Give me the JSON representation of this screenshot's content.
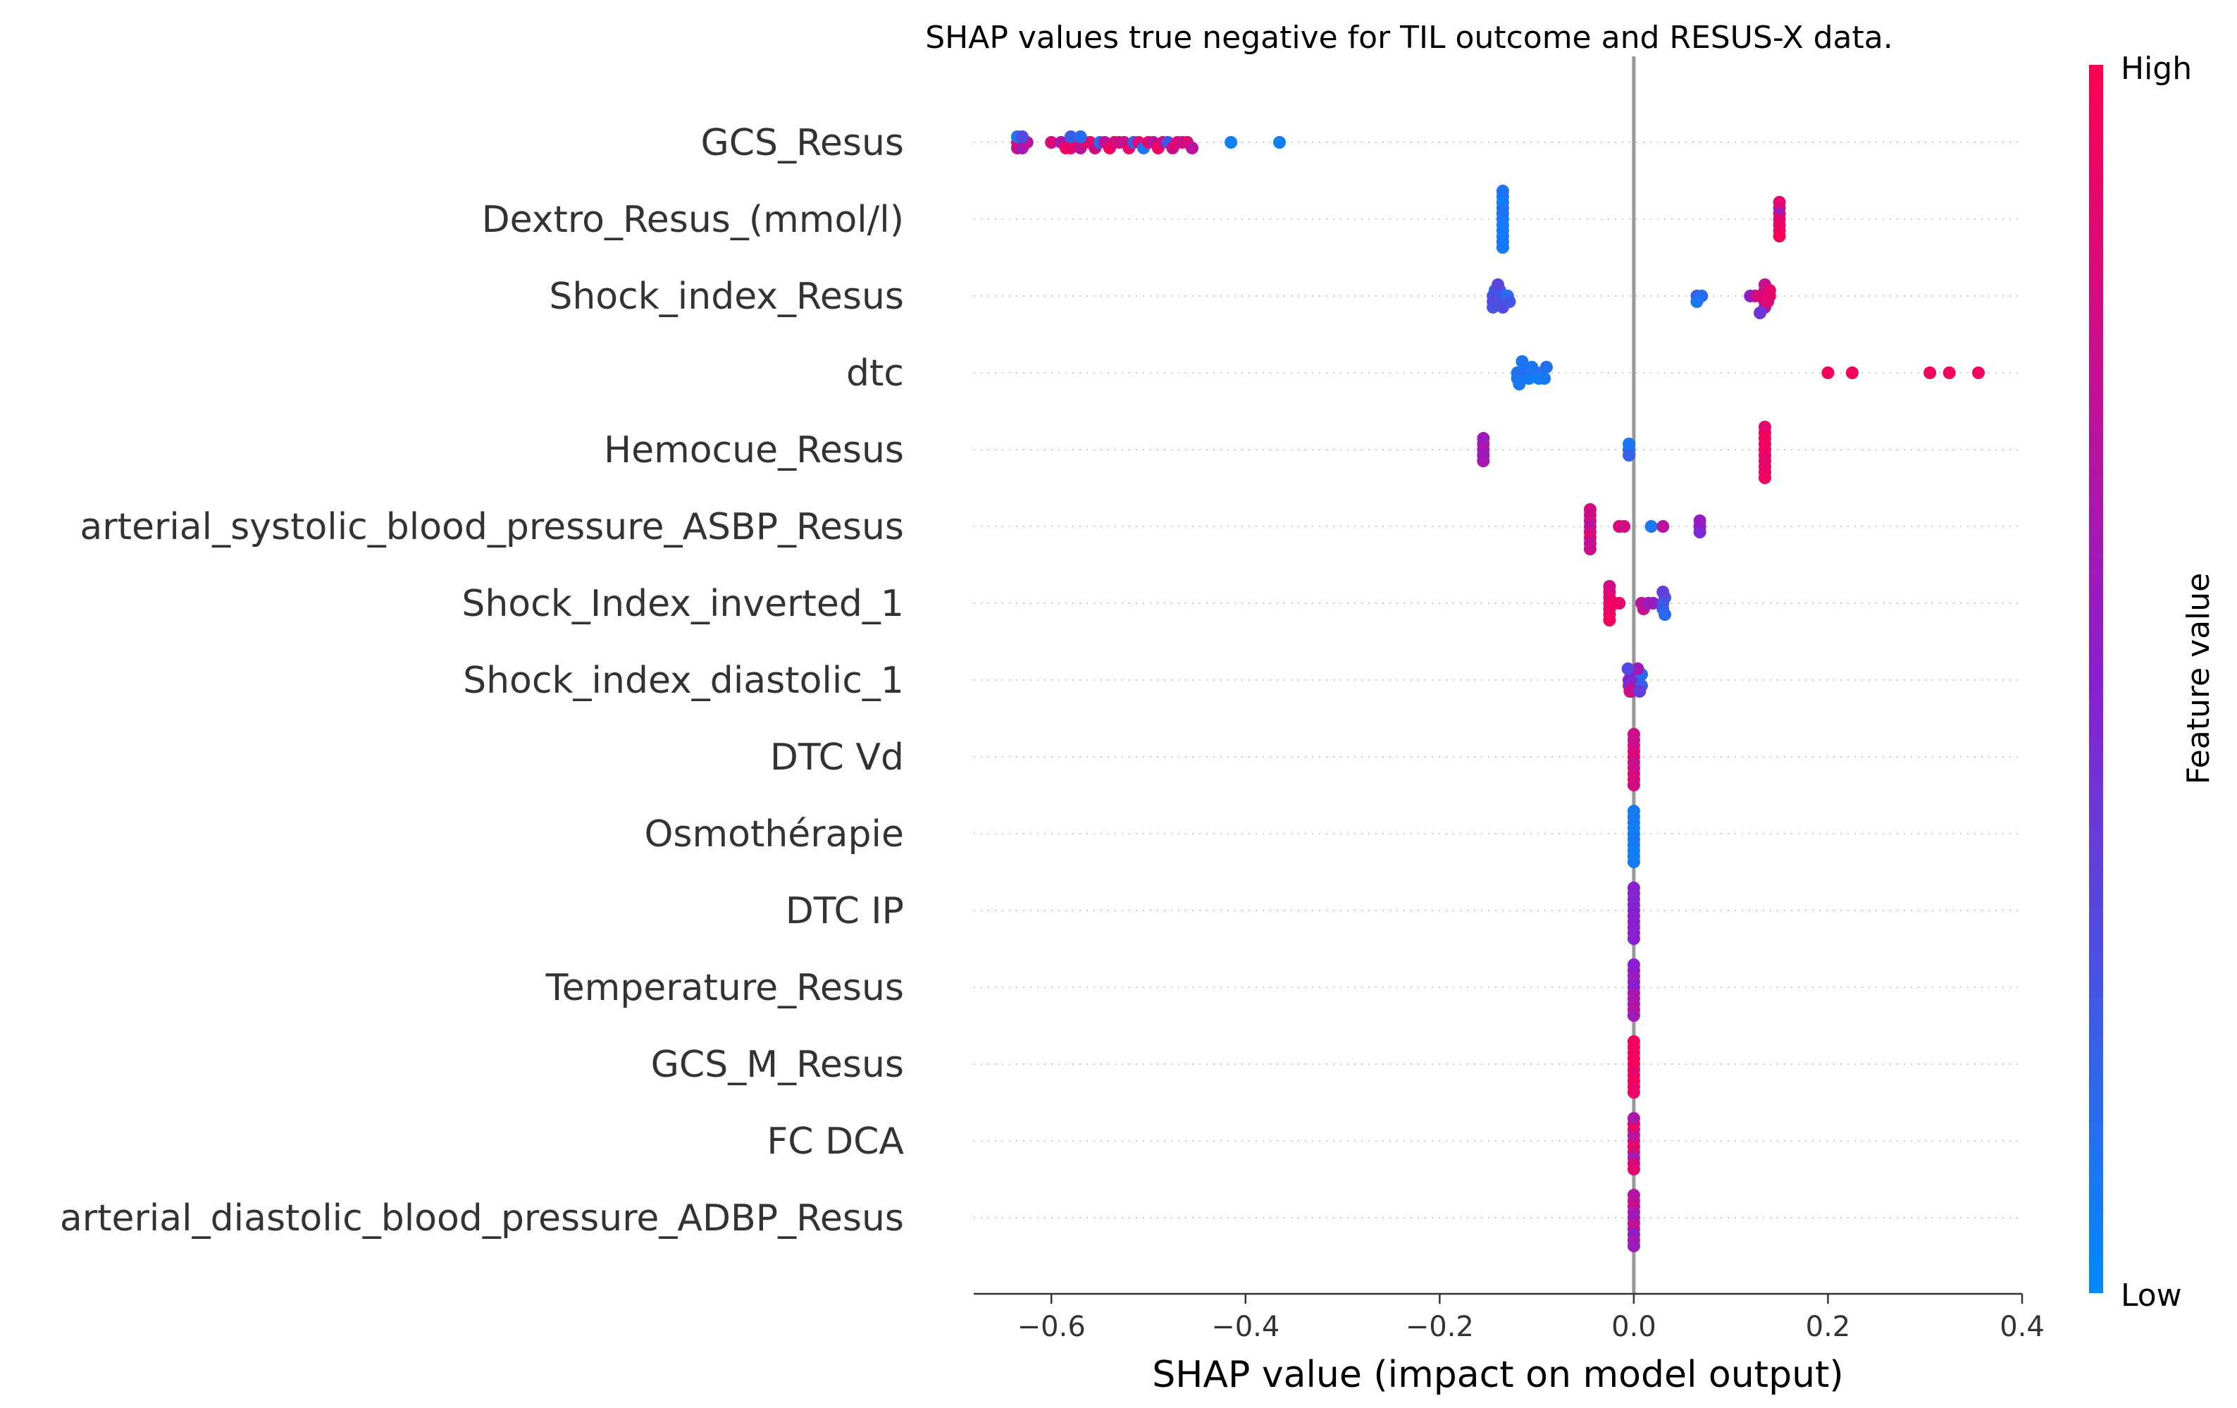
{
  "chart_data": {
    "type": "scatter",
    "subtype": "shap-beeswarm",
    "title": "SHAP values true negative for TIL outcome and RESUS-X data.",
    "xlabel": "SHAP value (impact on model output)",
    "ylabel": "",
    "xlim": [
      -0.68,
      0.4
    ],
    "xticks": [
      -0.6,
      -0.4,
      -0.2,
      0.0,
      0.2,
      0.4
    ],
    "xtick_labels": [
      "−0.6",
      "−0.4",
      "−0.2",
      "0.0",
      "0.2",
      "0.4"
    ],
    "grid": "horizontal dotted guides per feature",
    "colorbar": {
      "label": "Feature value",
      "high_label": "High",
      "low_label": "Low",
      "high_color": "#ff0051",
      "low_color": "#008bfb"
    },
    "features": [
      {
        "name": "GCS_Resus",
        "points": [
          [
            -0.635,
            0.9
          ],
          [
            -0.635,
            0.75
          ],
          [
            -0.632,
            0.95
          ],
          [
            -0.63,
            0.6
          ],
          [
            -0.625,
            0.7
          ],
          [
            -0.6,
            0.85
          ],
          [
            -0.59,
            0.65
          ],
          [
            -0.585,
            0.95
          ],
          [
            -0.58,
            0.8
          ],
          [
            -0.58,
            0.9
          ],
          [
            -0.575,
            0.95
          ],
          [
            -0.57,
            0.7
          ],
          [
            -0.565,
            0.85
          ],
          [
            -0.56,
            0.9
          ],
          [
            -0.555,
            0.8
          ],
          [
            -0.55,
            0.15
          ],
          [
            -0.545,
            0.7
          ],
          [
            -0.54,
            0.95
          ],
          [
            -0.535,
            0.85
          ],
          [
            -0.53,
            0.8
          ],
          [
            -0.525,
            0.75
          ],
          [
            -0.52,
            0.9
          ],
          [
            -0.515,
            0.2
          ],
          [
            -0.51,
            0.85
          ],
          [
            -0.505,
            0.1
          ],
          [
            -0.5,
            0.9
          ],
          [
            -0.495,
            0.7
          ],
          [
            -0.49,
            0.95
          ],
          [
            -0.485,
            0.8
          ],
          [
            -0.48,
            0.25
          ],
          [
            -0.475,
            0.8
          ],
          [
            -0.47,
            0.9
          ],
          [
            -0.465,
            0.75
          ],
          [
            -0.46,
            0.85
          ],
          [
            -0.455,
            0.7
          ],
          [
            -0.415,
            0.05
          ],
          [
            -0.365,
            0.05
          ],
          [
            -0.635,
            0.1
          ],
          [
            -0.63,
            0.3
          ],
          [
            -0.58,
            0.2
          ],
          [
            -0.57,
            0.15
          ]
        ]
      },
      {
        "name": "Dextro_Resus_(mmol/l)",
        "points": [
          [
            -0.135,
            0.05
          ],
          [
            -0.135,
            0.08
          ],
          [
            -0.135,
            0.1
          ],
          [
            -0.135,
            0.07
          ],
          [
            -0.135,
            0.12
          ],
          [
            -0.135,
            0.06
          ],
          [
            -0.135,
            0.09
          ],
          [
            -0.135,
            0.1
          ],
          [
            -0.135,
            0.05
          ],
          [
            -0.135,
            0.08
          ],
          [
            -0.135,
            0.11
          ],
          [
            -0.135,
            0.07
          ],
          [
            0.15,
            0.95
          ],
          [
            0.15,
            0.9
          ],
          [
            0.15,
            0.85
          ],
          [
            0.15,
            0.92
          ],
          [
            0.15,
            0.6
          ],
          [
            0.15,
            0.97
          ],
          [
            0.15,
            0.88
          ]
        ]
      },
      {
        "name": "Shock_index_Resus",
        "points": [
          [
            -0.145,
            0.25
          ],
          [
            -0.145,
            0.3
          ],
          [
            -0.143,
            0.2
          ],
          [
            -0.14,
            0.35
          ],
          [
            -0.14,
            0.28
          ],
          [
            -0.138,
            0.22
          ],
          [
            -0.135,
            0.3
          ],
          [
            -0.13,
            0.15
          ],
          [
            -0.128,
            0.25
          ],
          [
            -0.14,
            0.32
          ],
          [
            -0.145,
            0.27
          ],
          [
            0.065,
            0.2
          ],
          [
            0.07,
            0.15
          ],
          [
            0.065,
            0.1
          ],
          [
            0.12,
            0.5
          ],
          [
            0.125,
            0.7
          ],
          [
            0.13,
            0.85
          ],
          [
            0.135,
            0.9
          ],
          [
            0.135,
            0.8
          ],
          [
            0.135,
            0.6
          ],
          [
            0.14,
            0.95
          ],
          [
            0.135,
            0.75
          ],
          [
            0.13,
            0.4
          ],
          [
            0.138,
            0.85
          ],
          [
            0.14,
            0.88
          ]
        ]
      },
      {
        "name": "dtc",
        "points": [
          [
            -0.12,
            0.1
          ],
          [
            -0.12,
            0.08
          ],
          [
            -0.118,
            0.12
          ],
          [
            -0.115,
            0.06
          ],
          [
            -0.112,
            0.1
          ],
          [
            -0.11,
            0.15
          ],
          [
            -0.108,
            0.07
          ],
          [
            -0.105,
            0.1
          ],
          [
            -0.1,
            0.12
          ],
          [
            -0.098,
            0.05
          ],
          [
            -0.095,
            0.1
          ],
          [
            -0.092,
            0.08
          ],
          [
            -0.09,
            0.13
          ],
          [
            -0.118,
            0.09
          ],
          [
            -0.115,
            0.11
          ],
          [
            0.2,
            0.95
          ],
          [
            0.225,
            0.95
          ],
          [
            0.305,
            0.95
          ],
          [
            0.325,
            0.95
          ],
          [
            0.355,
            0.95
          ]
        ]
      },
      {
        "name": "Hemocue_Resus",
        "points": [
          [
            -0.155,
            0.6
          ],
          [
            -0.155,
            0.55
          ],
          [
            -0.155,
            0.65
          ],
          [
            -0.155,
            0.62
          ],
          [
            -0.155,
            0.58
          ],
          [
            -0.005,
            0.15
          ],
          [
            -0.005,
            0.2
          ],
          [
            -0.005,
            0.1
          ],
          [
            0.135,
            0.9
          ],
          [
            0.135,
            0.92
          ],
          [
            0.135,
            0.95
          ],
          [
            0.135,
            0.88
          ],
          [
            0.135,
            0.93
          ],
          [
            0.135,
            0.9
          ],
          [
            0.135,
            0.97
          ],
          [
            0.135,
            0.91
          ],
          [
            0.135,
            0.89
          ],
          [
            0.135,
            0.94
          ]
        ]
      },
      {
        "name": "arterial_systolic_blood_pressure_ASBP_Resus",
        "points": [
          [
            -0.045,
            0.75
          ],
          [
            -0.045,
            0.8
          ],
          [
            -0.045,
            0.7
          ],
          [
            -0.045,
            0.85
          ],
          [
            -0.045,
            0.78
          ],
          [
            -0.045,
            0.72
          ],
          [
            -0.045,
            0.8
          ],
          [
            -0.045,
            0.77
          ],
          [
            -0.015,
            0.85
          ],
          [
            -0.01,
            0.8
          ],
          [
            0.018,
            0.1
          ],
          [
            0.03,
            0.7
          ],
          [
            0.068,
            0.5
          ],
          [
            0.068,
            0.45
          ],
          [
            0.068,
            0.55
          ]
        ]
      },
      {
        "name": "Shock_Index_inverted_1",
        "points": [
          [
            -0.025,
            0.95
          ],
          [
            -0.025,
            0.9
          ],
          [
            -0.025,
            0.85
          ],
          [
            -0.025,
            0.92
          ],
          [
            -0.025,
            0.88
          ],
          [
            -0.025,
            0.95
          ],
          [
            -0.025,
            0.8
          ],
          [
            -0.02,
            0.95
          ],
          [
            -0.015,
            0.9
          ],
          [
            0.008,
            0.7
          ],
          [
            0.01,
            0.75
          ],
          [
            0.015,
            0.6
          ],
          [
            0.02,
            0.55
          ],
          [
            0.03,
            0.3
          ],
          [
            0.03,
            0.2
          ],
          [
            0.032,
            0.25
          ],
          [
            0.032,
            0.15
          ],
          [
            0.03,
            0.35
          ]
        ]
      },
      {
        "name": "Shock_index_diastolic_1",
        "points": [
          [
            -0.005,
            0.5
          ],
          [
            -0.005,
            0.45
          ],
          [
            -0.003,
            0.55
          ],
          [
            0.0,
            0.4
          ],
          [
            0.0,
            0.6
          ],
          [
            0.002,
            0.5
          ],
          [
            0.005,
            0.45
          ],
          [
            0.008,
            0.2
          ],
          [
            0.008,
            0.15
          ],
          [
            -0.004,
            0.85
          ],
          [
            -0.002,
            0.75
          ],
          [
            0.004,
            0.6
          ],
          [
            0.006,
            0.35
          ],
          [
            -0.006,
            0.3
          ]
        ]
      },
      {
        "name": "DTC Vd",
        "points": [
          [
            0.0,
            0.8
          ],
          [
            0.0,
            0.75
          ],
          [
            0.0,
            0.85
          ],
          [
            0.0,
            0.78
          ],
          [
            0.0,
            0.82
          ],
          [
            0.0,
            0.8
          ],
          [
            0.0,
            0.76
          ],
          [
            0.0,
            0.84
          ],
          [
            0.0,
            0.79
          ],
          [
            0.0,
            0.81
          ]
        ]
      },
      {
        "name": "Osmothérapie",
        "points": [
          [
            0.0,
            0.05
          ],
          [
            0.0,
            0.08
          ],
          [
            0.0,
            0.06
          ],
          [
            0.0,
            0.1
          ],
          [
            0.0,
            0.07
          ],
          [
            0.0,
            0.05
          ],
          [
            0.0,
            0.09
          ],
          [
            0.0,
            0.06
          ],
          [
            0.0,
            0.08
          ],
          [
            0.0,
            0.07
          ]
        ]
      },
      {
        "name": "DTC IP",
        "points": [
          [
            0.0,
            0.45
          ],
          [
            0.0,
            0.5
          ],
          [
            0.0,
            0.48
          ],
          [
            0.0,
            0.52
          ],
          [
            0.0,
            0.47
          ],
          [
            0.0,
            0.5
          ],
          [
            0.0,
            0.46
          ],
          [
            0.0,
            0.51
          ],
          [
            0.0,
            0.49
          ],
          [
            0.0,
            0.5
          ]
        ]
      },
      {
        "name": "Temperature_Resus",
        "points": [
          [
            0.0,
            0.55
          ],
          [
            0.0,
            0.6
          ],
          [
            0.0,
            0.5
          ],
          [
            0.0,
            0.65
          ],
          [
            0.0,
            0.58
          ],
          [
            0.0,
            0.62
          ],
          [
            0.0,
            0.55
          ],
          [
            0.0,
            0.7
          ],
          [
            0.0,
            0.5
          ],
          [
            0.0,
            0.6
          ]
        ]
      },
      {
        "name": "GCS_M_Resus",
        "points": [
          [
            0.0,
            0.95
          ],
          [
            0.0,
            0.92
          ],
          [
            0.0,
            0.97
          ],
          [
            0.0,
            0.9
          ],
          [
            0.0,
            0.94
          ],
          [
            0.0,
            0.96
          ],
          [
            0.0,
            0.93
          ],
          [
            0.0,
            0.91
          ],
          [
            0.0,
            0.95
          ],
          [
            0.0,
            0.92
          ]
        ]
      },
      {
        "name": "FC  DCA",
        "points": [
          [
            0.0,
            0.8
          ],
          [
            0.0,
            0.9
          ],
          [
            0.0,
            0.7
          ],
          [
            0.0,
            0.85
          ],
          [
            0.0,
            0.75
          ],
          [
            0.0,
            0.6
          ],
          [
            0.0,
            0.95
          ],
          [
            0.0,
            0.8
          ],
          [
            0.0,
            0.65
          ],
          [
            0.0,
            0.88
          ]
        ]
      },
      {
        "name": "arterial_diastolic_blood_pressure_ADBP_Resus",
        "points": [
          [
            0.0,
            0.6
          ],
          [
            0.0,
            0.7
          ],
          [
            0.0,
            0.55
          ],
          [
            0.0,
            0.75
          ],
          [
            0.0,
            0.65
          ],
          [
            0.0,
            0.5
          ],
          [
            0.0,
            0.8
          ],
          [
            0.0,
            0.62
          ],
          [
            0.0,
            0.68
          ],
          [
            0.0,
            0.58
          ]
        ]
      }
    ],
    "point_format": "[shap_value, normalized_feature_value 0=low 1=high]"
  }
}
